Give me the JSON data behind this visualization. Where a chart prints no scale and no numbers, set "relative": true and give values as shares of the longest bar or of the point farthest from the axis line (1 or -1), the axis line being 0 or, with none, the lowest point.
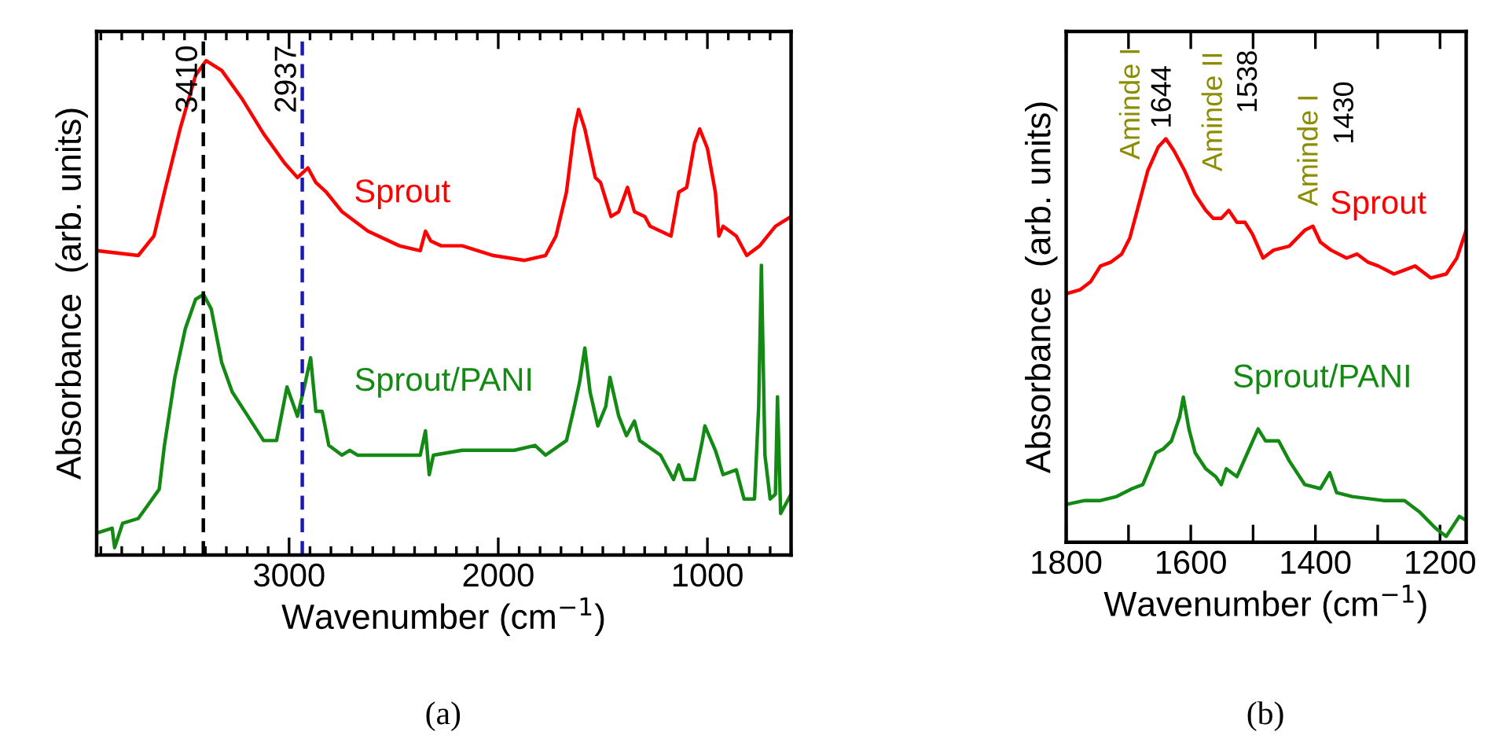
{
  "chart_data": [
    {
      "type": "line",
      "relative": true,
      "xlabel": "Wavenumber (cm$^{−1}$)",
      "ylabel": "Absorbance  (arb. units)",
      "xlim": [
        3920,
        600
      ],
      "xticks": [
        1000,
        2000,
        3000
      ],
      "line_style": "solid",
      "annotations": [
        "(a)"
      ],
      "ref_lines": [
        {
          "axis": "x",
          "value": 3410,
          "label": "3410",
          "color": "#000000",
          "line_style": "dashed"
        },
        {
          "axis": "x",
          "value": 2937,
          "label": "2937",
          "color": "#1a1ab0",
          "line_style": "dashed"
        }
      ],
      "series": [
        {
          "name": "Sprout",
          "color": "#ff0000",
          "x": [
            3920,
            3721,
            3646,
            3596,
            3521,
            3447,
            3397,
            3322,
            3222,
            3122,
            3022,
            2960,
            2910,
            2872,
            2822,
            2747,
            2623,
            2473,
            2373,
            2348,
            2323,
            2273,
            2173,
            2023,
            1874,
            1774,
            1724,
            1674,
            1636,
            1616,
            1586,
            1536,
            1511,
            1461,
            1424,
            1382,
            1349,
            1299,
            1274,
            1224,
            1174,
            1137,
            1099,
            1062,
            1037,
            1000,
            962,
            945,
            925,
            862,
            812,
            750,
            675,
            600
          ],
          "values": [
            0.61,
            0.6,
            0.64,
            0.73,
            0.86,
            0.97,
            1.0,
            0.98,
            0.92,
            0.85,
            0.79,
            0.76,
            0.78,
            0.75,
            0.73,
            0.69,
            0.65,
            0.62,
            0.61,
            0.65,
            0.63,
            0.62,
            0.62,
            0.6,
            0.59,
            0.6,
            0.64,
            0.73,
            0.86,
            0.9,
            0.86,
            0.76,
            0.75,
            0.68,
            0.69,
            0.74,
            0.69,
            0.68,
            0.66,
            0.65,
            0.64,
            0.73,
            0.74,
            0.83,
            0.86,
            0.82,
            0.73,
            0.64,
            0.66,
            0.64,
            0.6,
            0.62,
            0.66,
            0.68
          ]
        },
        {
          "name": "Sprout/PANI",
          "color": "#138a13",
          "x": [
            3920,
            3846,
            3834,
            3796,
            3721,
            3671,
            3621,
            3596,
            3546,
            3496,
            3447,
            3409,
            3372,
            3322,
            3272,
            3197,
            3122,
            3060,
            3010,
            2985,
            2960,
            2922,
            2897,
            2872,
            2842,
            2810,
            2747,
            2710,
            2673,
            2523,
            2373,
            2348,
            2330,
            2310,
            2173,
            2023,
            1923,
            1824,
            1774,
            1674,
            1636,
            1611,
            1586,
            1561,
            1524,
            1486,
            1466,
            1424,
            1387,
            1349,
            1324,
            1224,
            1162,
            1137,
            1112,
            1062,
            1024,
            1012,
            962,
            925,
            862,
            825,
            775,
            755,
            742,
            725,
            700,
            675,
            665,
            650,
            600
          ],
          "values": [
            0.03,
            0.04,
            0.0,
            0.05,
            0.06,
            0.09,
            0.12,
            0.21,
            0.35,
            0.45,
            0.51,
            0.52,
            0.49,
            0.38,
            0.32,
            0.27,
            0.22,
            0.22,
            0.33,
            0.3,
            0.27,
            0.34,
            0.39,
            0.28,
            0.28,
            0.21,
            0.19,
            0.2,
            0.19,
            0.19,
            0.19,
            0.24,
            0.15,
            0.19,
            0.2,
            0.2,
            0.2,
            0.21,
            0.19,
            0.22,
            0.29,
            0.34,
            0.41,
            0.32,
            0.25,
            0.29,
            0.35,
            0.27,
            0.23,
            0.26,
            0.22,
            0.19,
            0.14,
            0.17,
            0.14,
            0.14,
            0.22,
            0.25,
            0.2,
            0.15,
            0.16,
            0.1,
            0.1,
            0.29,
            0.58,
            0.19,
            0.1,
            0.11,
            0.31,
            0.07,
            0.11
          ]
        }
      ]
    },
    {
      "type": "line",
      "relative": true,
      "xlabel": "Wavenumber (cm$^{−1}$)",
      "ylabel": "Absorbance  (arb. units)",
      "xlim": [
        1800,
        1158
      ],
      "xticks": [
        {
          "value": 1200,
          "label": "1200"
        },
        {
          "value": 1300,
          "label": null
        },
        {
          "value": 1400,
          "label": "1400"
        },
        {
          "value": 1500,
          "label": null
        },
        {
          "value": 1600,
          "label": "1600"
        },
        {
          "value": 1700,
          "label": null
        },
        {
          "value": 1800,
          "label": "1800"
        }
      ],
      "line_style": "solid",
      "annotations": [
        "(b)",
        "Aminde I",
        "1644",
        "Aminde II",
        "1538",
        "Aminde I",
        "1430"
      ],
      "series": [
        {
          "name": "Sprout",
          "color": "#ff0000",
          "x": [
            1800,
            1778,
            1761,
            1745,
            1728,
            1711,
            1698,
            1686,
            1669,
            1652,
            1640,
            1627,
            1610,
            1593,
            1576,
            1564,
            1551,
            1539,
            1526,
            1513,
            1501,
            1484,
            1467,
            1442,
            1417,
            1404,
            1392,
            1375,
            1350,
            1333,
            1316,
            1299,
            1274,
            1240,
            1215,
            1190,
            1173,
            1158
          ],
          "values": [
            0.61,
            0.62,
            0.64,
            0.68,
            0.69,
            0.71,
            0.75,
            0.82,
            0.92,
            0.98,
            1.0,
            0.97,
            0.92,
            0.86,
            0.82,
            0.8,
            0.8,
            0.82,
            0.79,
            0.79,
            0.76,
            0.7,
            0.72,
            0.73,
            0.77,
            0.78,
            0.74,
            0.72,
            0.7,
            0.71,
            0.69,
            0.68,
            0.66,
            0.68,
            0.65,
            0.66,
            0.7,
            0.77
          ]
        },
        {
          "name": "Sprout/PANI",
          "color": "#138a13",
          "x": [
            1800,
            1770,
            1745,
            1719,
            1694,
            1677,
            1656,
            1644,
            1631,
            1618,
            1612,
            1603,
            1593,
            1576,
            1560,
            1551,
            1543,
            1526,
            1509,
            1492,
            1480,
            1459,
            1442,
            1417,
            1392,
            1377,
            1366,
            1341,
            1291,
            1257,
            1232,
            1207,
            1190,
            1169,
            1158
          ],
          "values": [
            0.08,
            0.09,
            0.09,
            0.1,
            0.12,
            0.13,
            0.21,
            0.22,
            0.24,
            0.3,
            0.35,
            0.27,
            0.21,
            0.17,
            0.15,
            0.13,
            0.17,
            0.15,
            0.21,
            0.27,
            0.24,
            0.24,
            0.19,
            0.13,
            0.12,
            0.16,
            0.11,
            0.1,
            0.09,
            0.09,
            0.06,
            0.02,
            0.0,
            0.05,
            0.04
          ]
        }
      ]
    }
  ]
}
